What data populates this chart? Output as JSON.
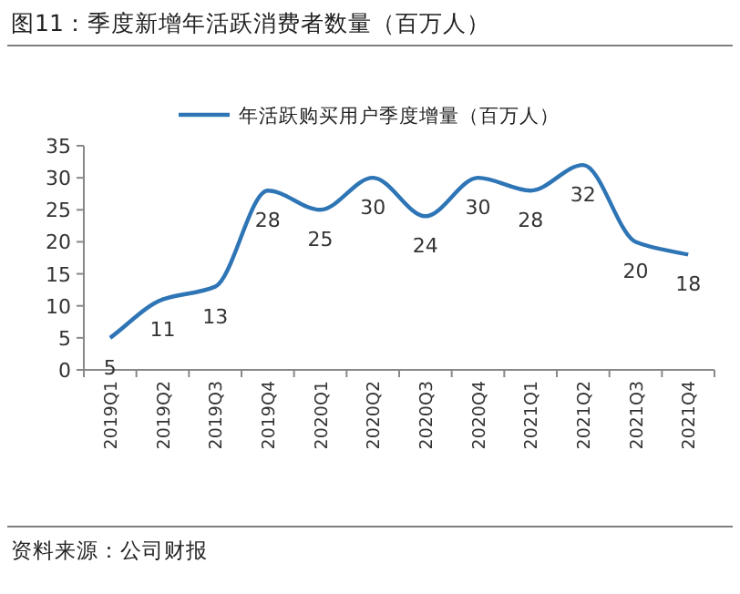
{
  "chart_data": {
    "type": "line",
    "title": "图11：季度新增年活跃消费者数量（百万人）",
    "categories": [
      "2019Q1",
      "2019Q2",
      "2019Q3",
      "2019Q4",
      "2020Q1",
      "2020Q2",
      "2020Q3",
      "2020Q4",
      "2021Q1",
      "2021Q2",
      "2021Q3",
      "2021Q4"
    ],
    "series": [
      {
        "name": "年活跃购买用户季度增量（百万人）",
        "color": "#2e75b6",
        "values": [
          5,
          11,
          13,
          28,
          25,
          30,
          24,
          30,
          28,
          32,
          20,
          18
        ]
      }
    ],
    "ylim": [
      0,
      35
    ],
    "yticks": [
      0,
      5,
      10,
      15,
      20,
      25,
      30,
      35
    ],
    "data_labels": true,
    "legend": "top",
    "annotations": [
      "资料来源：公司财报"
    ]
  }
}
